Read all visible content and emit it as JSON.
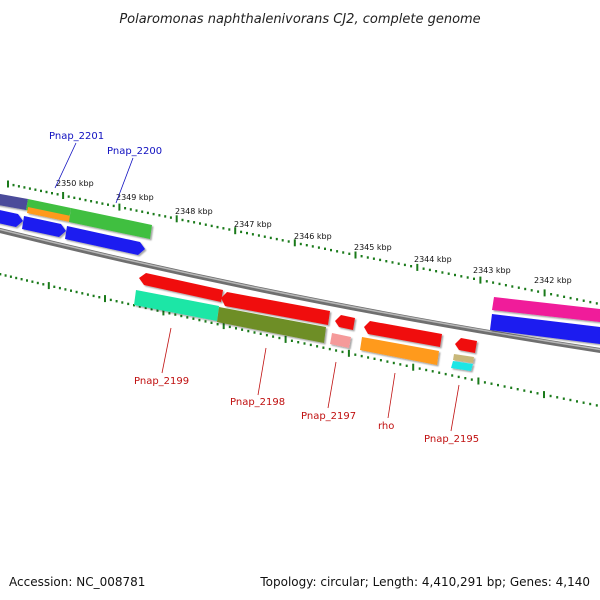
{
  "title": "Polaromonas naphthalenivorans CJ2, complete genome",
  "footer": {
    "accession": "Accession: NC_008781",
    "summary": "Topology: circular; Length: 4,410,291 bp; Genes: 4,140"
  },
  "scale_labels": [
    "2350 kbp",
    "2349 kbp",
    "2348 kbp",
    "2347 kbp",
    "2346 kbp",
    "2345 kbp",
    "2344 kbp",
    "2343 kbp",
    "2342 kbp"
  ],
  "gene_labels": {
    "forward": [
      "Pnap_2201",
      "Pnap_2200"
    ],
    "reverse": [
      "Pnap_2199",
      "Pnap_2198",
      "Pnap_2197",
      "rho",
      "Pnap_2195"
    ]
  },
  "colors": {
    "backbone": "#808080",
    "tick": "#1a7a1a",
    "forward_label": "#1010c0",
    "reverse_label": "#c01010"
  }
}
